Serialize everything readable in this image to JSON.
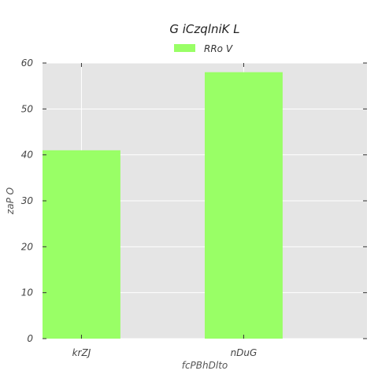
{
  "chart_data": {
    "type": "bar",
    "title": "G iCzqlniK L",
    "xlabel": "fcPBhDlto",
    "ylabel": "zaP O",
    "categories": [
      "krZJ",
      "nDuG"
    ],
    "series": [
      {
        "name": "RRo V",
        "values": [
          41,
          58
        ],
        "color": "#99ff66"
      }
    ],
    "ylim": [
      0,
      60
    ],
    "yticks": [
      0,
      10,
      20,
      30,
      40,
      50,
      60
    ],
    "grid": true,
    "legend": "top-center",
    "background": "#e5e5e5"
  }
}
